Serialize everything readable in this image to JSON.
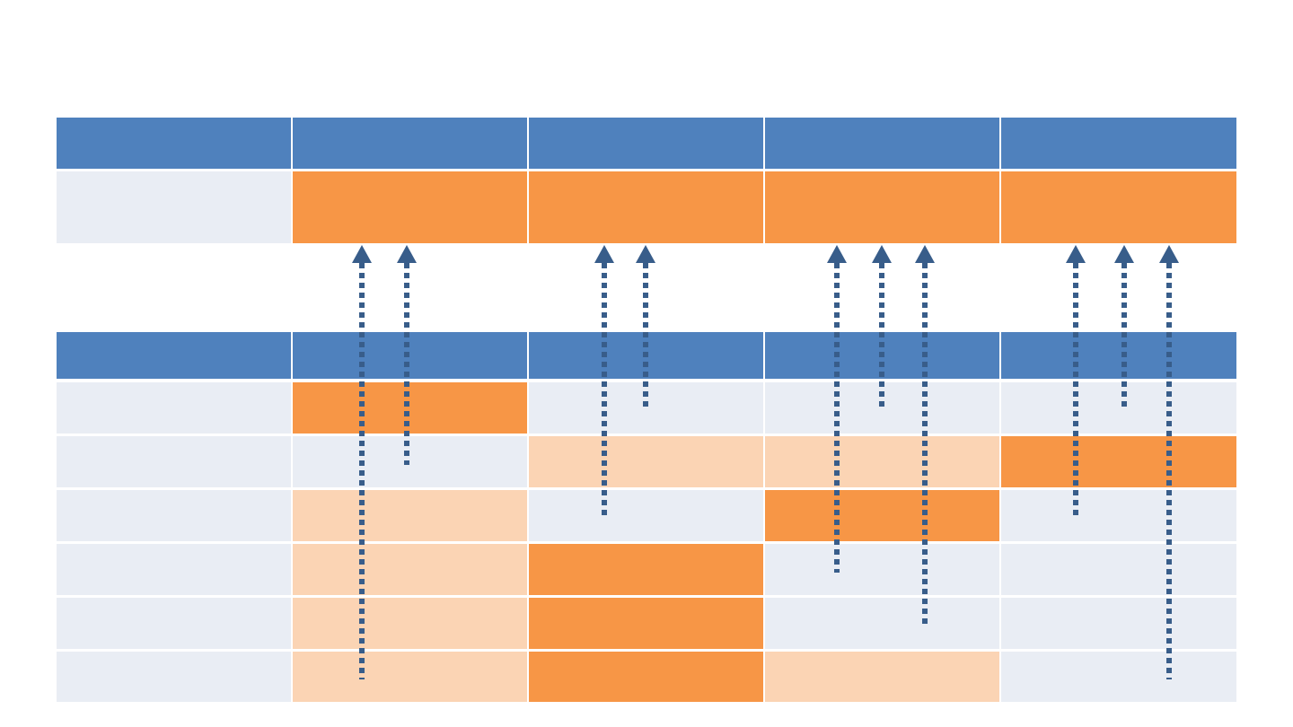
{
  "colors": {
    "header": "#4f81bd",
    "label": "#e9edf4",
    "strong": "#f79646",
    "light": "#fbd4b4",
    "empty": "#e9edf4",
    "arrow": "#385d8a"
  },
  "top_table": {
    "header_row": [
      "blank",
      "blank",
      "blank",
      "blank",
      "blank"
    ],
    "rows": [
      [
        "label",
        "strong",
        "strong",
        "strong",
        "strong"
      ]
    ]
  },
  "bottom_table": {
    "header_row": [
      "blank",
      "blank",
      "blank",
      "blank",
      "blank"
    ],
    "rows": [
      [
        "label",
        "strong",
        "empty",
        "empty",
        "empty"
      ],
      [
        "label",
        "empty",
        "light",
        "light",
        "strong"
      ],
      [
        "label",
        "light",
        "empty",
        "strong",
        "empty"
      ],
      [
        "label",
        "light",
        "strong",
        "empty",
        "empty"
      ],
      [
        "label",
        "light",
        "strong",
        "empty",
        "empty"
      ],
      [
        "label",
        "light",
        "strong",
        "light",
        "empty"
      ]
    ]
  },
  "links": [
    {
      "column": 1,
      "from_row": 6
    },
    {
      "column": 1,
      "from_row": 2
    },
    {
      "column": 2,
      "from_row": 3
    },
    {
      "column": 2,
      "from_row": 1
    },
    {
      "column": 3,
      "from_row": 4
    },
    {
      "column": 3,
      "from_row": 1
    },
    {
      "column": 3,
      "from_row": 5
    },
    {
      "column": 4,
      "from_row": 3
    },
    {
      "column": 4,
      "from_row": 1
    },
    {
      "column": 4,
      "from_row": 6
    }
  ]
}
